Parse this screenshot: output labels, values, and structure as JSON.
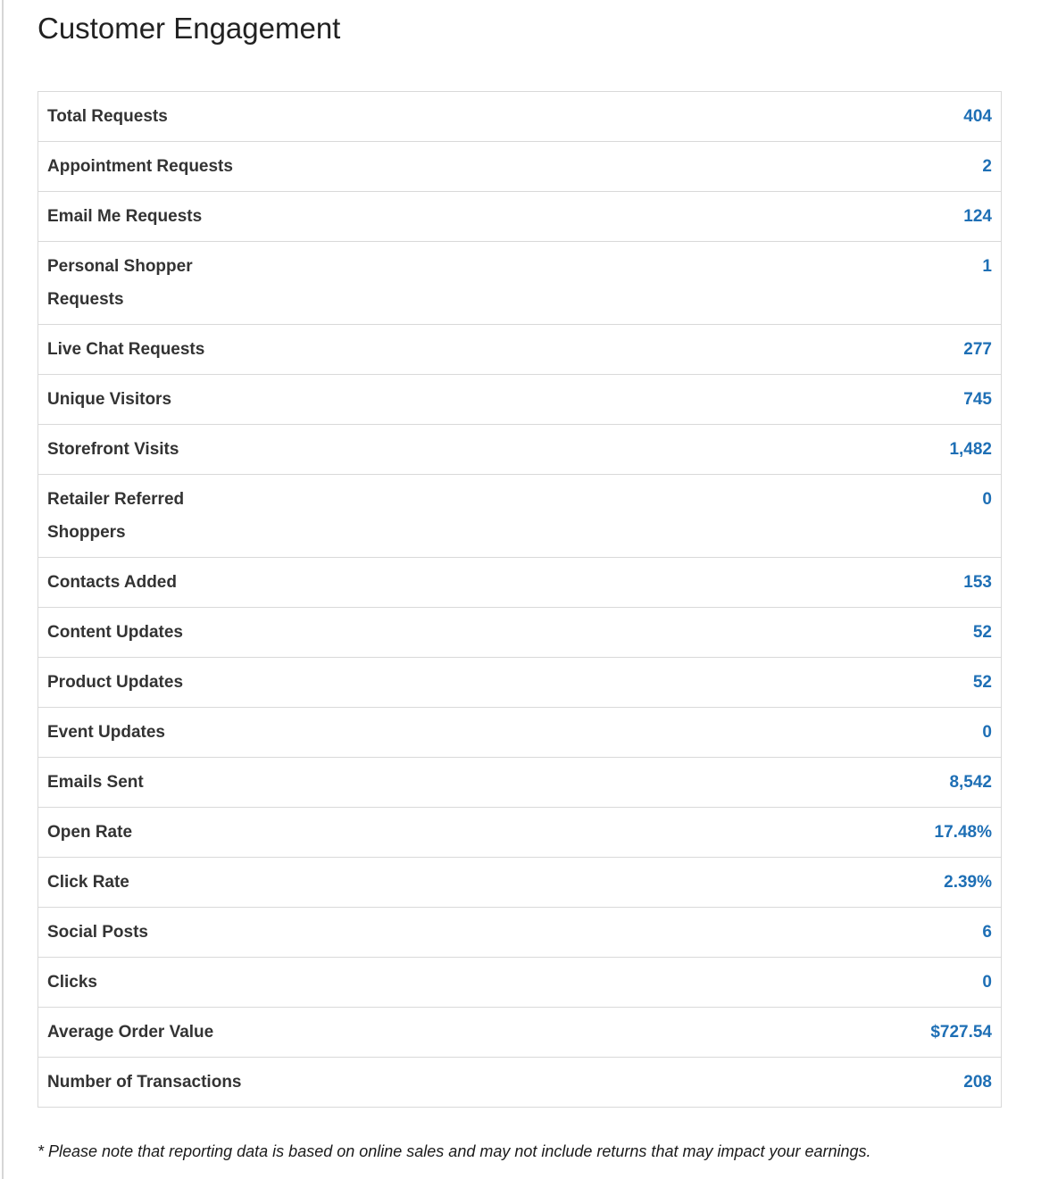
{
  "title": "Customer Engagement",
  "table": {
    "rows": [
      {
        "label": "Total Requests",
        "value": "404"
      },
      {
        "label": "Appointment Requests",
        "value": "2"
      },
      {
        "label": "Email Me Requests",
        "value": "124"
      },
      {
        "label": "Personal Shopper\nRequests",
        "value": "1"
      },
      {
        "label": "Live Chat Requests",
        "value": "277"
      },
      {
        "label": "Unique Visitors",
        "value": "745"
      },
      {
        "label": "Storefront Visits",
        "value": "1,482"
      },
      {
        "label": "Retailer Referred\nShoppers",
        "value": "0"
      },
      {
        "label": "Contacts Added",
        "value": "153"
      },
      {
        "label": "Content Updates",
        "value": "52"
      },
      {
        "label": "Product Updates",
        "value": "52"
      },
      {
        "label": "Event Updates",
        "value": "0"
      },
      {
        "label": "Emails Sent",
        "value": "8,542"
      },
      {
        "label": "Open Rate",
        "value": "17.48%"
      },
      {
        "label": "Click Rate",
        "value": "2.39%"
      },
      {
        "label": "Social Posts",
        "value": "6"
      },
      {
        "label": "Clicks",
        "value": "0"
      },
      {
        "label": "Average Order Value",
        "value": "$727.54"
      },
      {
        "label": "Number of Transactions",
        "value": "208"
      }
    ]
  },
  "footnote": "* Please note that reporting data is based on online sales and may not include returns that may impact your earnings.",
  "colors": {
    "value_accent": "#1e6fb5",
    "label_text": "#333333",
    "title_text": "#222222",
    "row_border": "#d9d9d9",
    "page_edge": "#d6d6d6",
    "background": "#ffffff"
  }
}
